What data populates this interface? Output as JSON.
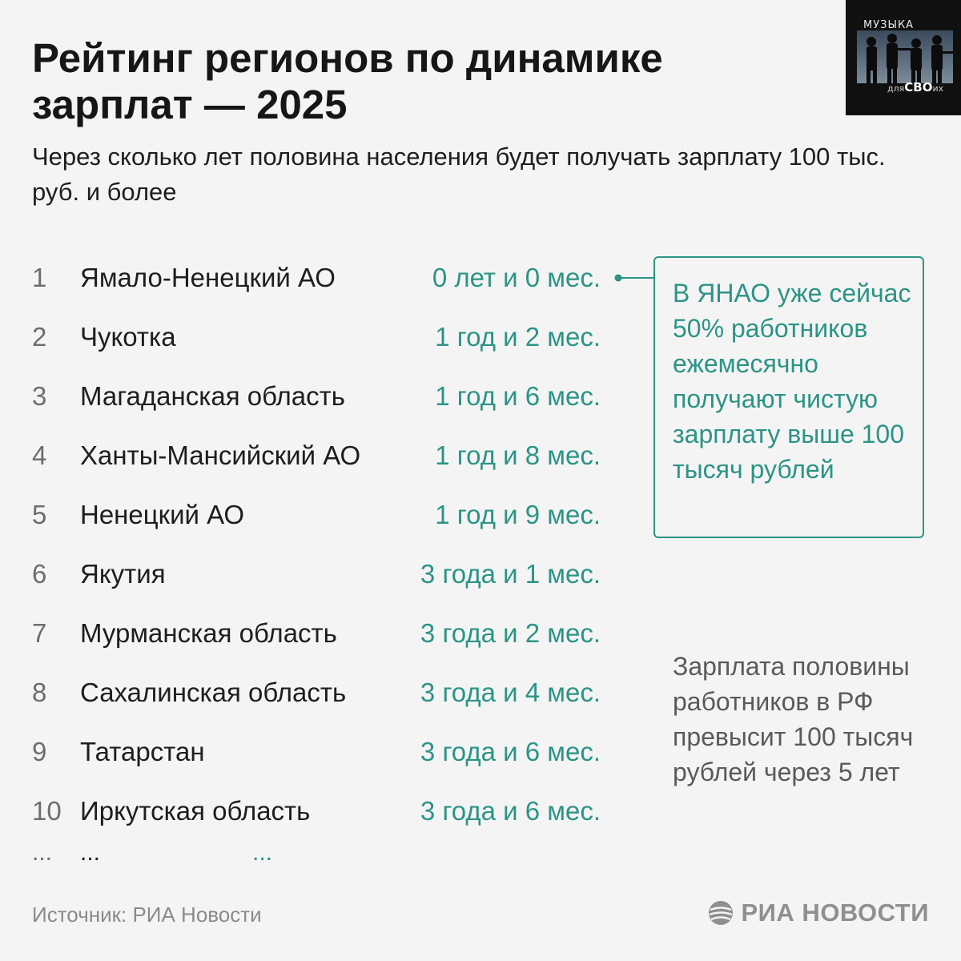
{
  "title": "Рейтинг регионов по динамике зарплат — 2025",
  "subtitle": "Через сколько лет половина населения будет получать зарплату 100 тыс. руб. и более",
  "logo": {
    "top_text": "МУЗЫКА",
    "bottom_prefix": "для",
    "bottom_main": "СВО",
    "bottom_suffix": "их"
  },
  "rows": [
    {
      "rank": "1",
      "region": "Ямало-Ненецкий АО",
      "period": "0 лет и 0 мес."
    },
    {
      "rank": "2",
      "region": "Чукотка",
      "period": "1 год и 2 мес."
    },
    {
      "rank": "3",
      "region": "Магаданская область",
      "period": "1 год и 6 мес."
    },
    {
      "rank": "4",
      "region": "Ханты-Мансийский АО",
      "period": "1 год и 8 мес."
    },
    {
      "rank": "5",
      "region": "Ненецкий АО",
      "period": "1 год и 9 мес."
    },
    {
      "rank": "6",
      "region": "Якутия",
      "period": "3 года и 1 мес."
    },
    {
      "rank": "7",
      "region": "Мурманская область",
      "period": "3 года и 2 мес."
    },
    {
      "rank": "8",
      "region": "Сахалинская область",
      "period": "3 года и 4 мес."
    },
    {
      "rank": "9",
      "region": "Татарстан",
      "period": "3 года и 6 мес."
    },
    {
      "rank": "10",
      "region": "Иркутская область",
      "period": "3 года и 6 мес."
    }
  ],
  "ellipsis": {
    "rank": "...",
    "region": "...",
    "period": "..."
  },
  "callout": {
    "text": "В ЯНАО уже сейчас 50% работников ежемесячно получают чистую зарплату выше 100 тысяч рублей"
  },
  "side_note": "Зарплата половины работников в РФ превысит 100 тысяч рублей через 5 лет",
  "source": "Источник: РИА Новости",
  "brand": "РИА НОВОСТИ",
  "colors": {
    "accent": "#2b9486",
    "background": "#f4f4f4",
    "text": "#1e1e1e",
    "muted": "#8a8a8a"
  }
}
